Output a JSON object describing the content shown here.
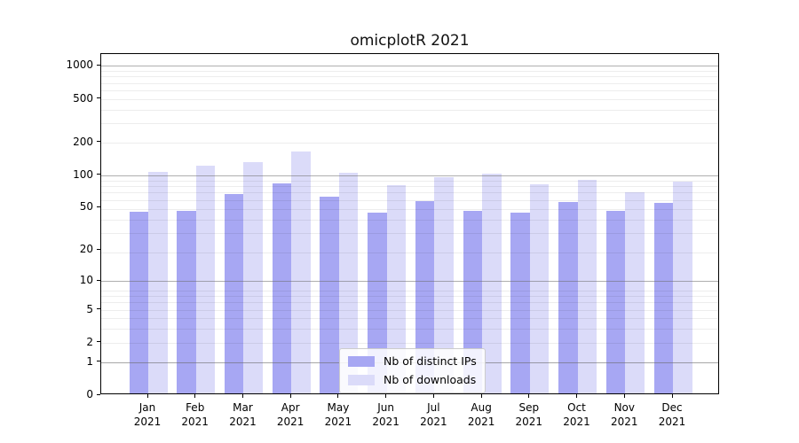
{
  "chart_data": {
    "type": "bar",
    "title": "omicplotR 2021",
    "categories": [
      "Jan 2021",
      "Feb 2021",
      "Mar 2021",
      "Apr 2021",
      "May 2021",
      "Jun 2021",
      "Jul 2021",
      "Aug 2021",
      "Sep 2021",
      "Oct 2021",
      "Nov 2021",
      "Dec 2021"
    ],
    "series": [
      {
        "name": "Nb of distinct IPs",
        "color": "#a7a7f3",
        "values": [
          44,
          45,
          64,
          81,
          61,
          43,
          56,
          45,
          43,
          54,
          45,
          53
        ]
      },
      {
        "name": "Nb of downloads",
        "color": "#dbdbf9",
        "values": [
          103,
          117,
          127,
          158,
          101,
          78,
          92,
          100,
          80,
          87,
          67,
          84
        ]
      }
    ],
    "xlabel": "",
    "ylabel": "",
    "y_ticks": [
      0,
      1,
      2,
      5,
      10,
      20,
      50,
      100,
      200,
      500,
      1000
    ],
    "ylim": [
      0,
      1280
    ],
    "scale": "log10(1+y)",
    "grid": "horizontal major and minor, drawn over bars",
    "legend_position": "lower center inside plot"
  },
  "colors": {
    "background": "#ffffff",
    "axis": "#000000",
    "major_grid": "#6e6e6e",
    "minor_grid": "#e8e8e8",
    "legend_border": "#cccccc",
    "text": "#000000"
  }
}
